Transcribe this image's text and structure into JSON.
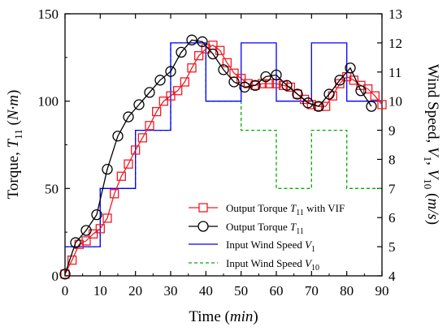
{
  "chart_data": {
    "type": "line",
    "x_axis": {
      "label_main": "Time (",
      "label_italic": "min",
      "label_end": ")",
      "range": [
        0,
        90
      ],
      "ticks": [
        0,
        10,
        20,
        30,
        40,
        50,
        60,
        70,
        80,
        90
      ]
    },
    "y_axis_left": {
      "label_main": "Torque, ",
      "label_sym": "T",
      "label_sub": "11",
      "label_unit_open": " (",
      "label_unit": "N·m",
      "label_unit_close": ")",
      "range": [
        0,
        150
      ],
      "ticks": [
        0,
        50,
        100,
        150
      ]
    },
    "y_axis_right": {
      "label_main": "Wind Speed, ",
      "label_v1": "V",
      "label_v1_sub": "1",
      "label_sep": ", ",
      "label_v10": "V",
      "label_v10_sub": "10",
      "label_unit_open": " (",
      "label_unit": "m/s",
      "label_unit_close": ")",
      "range": [
        4,
        13
      ],
      "ticks": [
        4,
        5,
        6,
        7,
        8,
        9,
        10,
        11,
        12,
        13
      ]
    },
    "series": [
      {
        "name": "Output Torque T11 with VIF",
        "label_prefix": "Output Torque ",
        "label_sym": "T",
        "label_sub": "11",
        "label_suffix": " with VIF",
        "axis": "left",
        "color": "#ee1c25",
        "marker": "square",
        "x": [
          0,
          2,
          4,
          6,
          8,
          10,
          12,
          14,
          16,
          18,
          20,
          22,
          24,
          26,
          28,
          30,
          32,
          34,
          36,
          38,
          40,
          42,
          44,
          46,
          48,
          50,
          52,
          54,
          56,
          58,
          60,
          62,
          64,
          66,
          68,
          70,
          72,
          74,
          76,
          78,
          80,
          82,
          84,
          86,
          88,
          90
        ],
        "y": [
          1,
          9,
          18,
          20,
          24,
          27,
          33,
          47,
          57,
          64,
          72,
          79,
          86,
          94,
          100,
          103,
          106,
          111,
          119,
          126,
          130,
          132,
          129,
          122,
          116,
          113,
          110,
          109,
          110,
          110,
          110,
          109,
          108,
          104,
          101,
          98,
          97,
          97,
          103,
          110,
          114,
          112,
          109,
          107,
          103,
          98
        ]
      },
      {
        "name": "Output Torque T11",
        "label_prefix": "Output Torque ",
        "label_sym": "T",
        "label_sub": "11",
        "label_suffix": "",
        "axis": "left",
        "color": "#000000",
        "marker": "circle",
        "x": [
          0,
          3,
          6,
          9,
          12,
          15,
          18,
          21,
          24,
          27,
          30,
          33,
          36,
          39,
          42,
          45,
          48,
          51,
          54,
          57,
          60,
          63,
          66,
          69,
          72,
          75,
          78,
          81,
          84,
          87
        ],
        "y": [
          1,
          19,
          26,
          35,
          61,
          80,
          91,
          98,
          105,
          112,
          117,
          128,
          135,
          134,
          127,
          118,
          111,
          108,
          109,
          114,
          115,
          109,
          104,
          99,
          97,
          104,
          112,
          119,
          106,
          97
        ]
      },
      {
        "name": "Input Wind Speed V1",
        "label_prefix": "Input Wind Speed ",
        "label_sym": "V",
        "label_sub": "1",
        "label_suffix": "",
        "axis": "right",
        "color": "#0000ff",
        "style": "solid",
        "x": [
          0,
          10,
          10,
          20,
          20,
          30,
          30,
          40,
          40,
          50,
          50,
          60,
          60,
          70,
          70,
          80,
          80,
          90
        ],
        "y": [
          5,
          5,
          7,
          7,
          9,
          9,
          12,
          12,
          10,
          10,
          12,
          12,
          10,
          10,
          12,
          12,
          10,
          10
        ]
      },
      {
        "name": "Input Wind Speed V10",
        "label_prefix": "Input Wind Speed ",
        "label_sym": "V",
        "label_sub": "10",
        "label_suffix": "",
        "axis": "right",
        "color": "#00aa00",
        "style": "dashed",
        "x": [
          0,
          10,
          10,
          20,
          20,
          30,
          30,
          40,
          40,
          50,
          50,
          60,
          60,
          70,
          70,
          80,
          80,
          90
        ],
        "y": [
          5,
          5,
          7,
          7,
          9,
          9,
          12,
          12,
          10,
          10,
          9,
          9,
          7,
          7,
          9,
          9,
          7,
          7
        ]
      }
    ],
    "legend_position": "bottom-right"
  }
}
